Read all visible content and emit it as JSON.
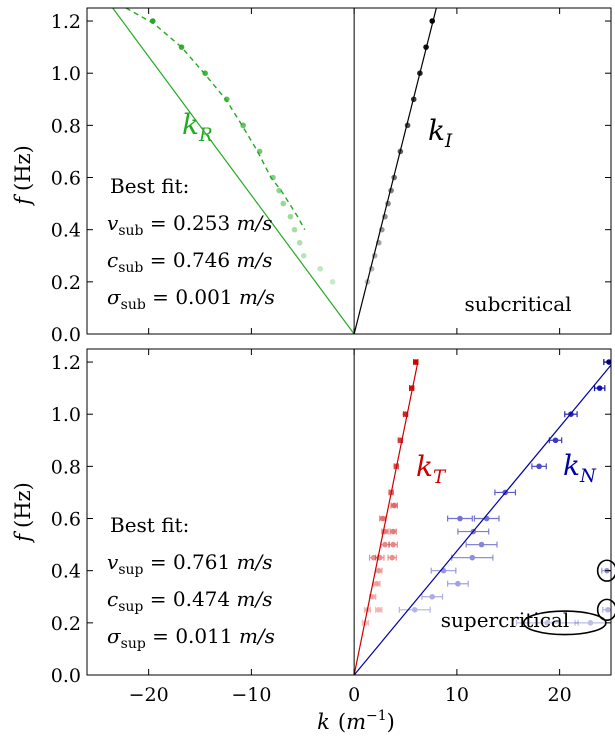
{
  "figure": {
    "xlabel_var": "k",
    "xlabel_unit_open": "(",
    "xlabel_unit_base": "m",
    "xlabel_unit_exp": "−1",
    "xlabel_unit_close": ")",
    "ylabel_var": "f",
    "ylabel_unit": "(Hz)"
  },
  "colors": {
    "green": "#22aa22",
    "black": "#000000",
    "red": "#cc0000",
    "blue": "#0000aa"
  },
  "chart_data": [
    {
      "type": "scatter",
      "panel": "top",
      "xlim": [
        -26,
        25
      ],
      "ylim": [
        0,
        1.25
      ],
      "xticks": [
        -20,
        -10,
        0,
        10,
        20
      ],
      "yticks": [
        "0.0",
        "0.2",
        "0.4",
        "0.6",
        "0.8",
        "1.0",
        "1.2"
      ],
      "xtick_labels_shown": false,
      "regime_label": "subcritical",
      "fit_heading": "Best fit:",
      "fit_lines": [
        {
          "sym": "v",
          "sub": "sub",
          "eq": " = ",
          "num": "0.253",
          "unit": "m/s"
        },
        {
          "sym": "c",
          "sub": "sub",
          "eq": " = ",
          "num": "0.746",
          "unit": "m/s"
        },
        {
          "sym": "σ",
          "sub": "sub",
          "eq": " = ",
          "num": "0.001",
          "unit": "m/s"
        }
      ],
      "series": [
        {
          "name": "k",
          "name_sub": "R",
          "color_key": "green",
          "fit_line": {
            "x0": 0,
            "y0": 0,
            "x1": -23.5,
            "y1": 1.25
          },
          "dashed_curve": [
            [
              -22.2,
              1.25
            ],
            [
              -19.5,
              1.19
            ],
            [
              -16.8,
              1.1
            ],
            [
              -14.6,
              1.0
            ],
            [
              -12.5,
              0.9
            ],
            [
              -10.9,
              0.8
            ],
            [
              -9.4,
              0.7
            ],
            [
              -8.1,
              0.6
            ],
            [
              -7.1,
              0.55
            ],
            [
              -6.3,
              0.5
            ],
            [
              -5.5,
              0.45
            ],
            [
              -4.8,
              0.4
            ]
          ],
          "points": [
            {
              "x": -19.6,
              "y": 1.2
            },
            {
              "x": -16.8,
              "y": 1.1
            },
            {
              "x": -14.5,
              "y": 1.0
            },
            {
              "x": -12.4,
              "y": 0.9
            },
            {
              "x": -10.8,
              "y": 0.8
            },
            {
              "x": -9.2,
              "y": 0.7
            },
            {
              "x": -7.9,
              "y": 0.6
            },
            {
              "x": -7.3,
              "y": 0.55
            },
            {
              "x": -6.9,
              "y": 0.5
            },
            {
              "x": -6.2,
              "y": 0.45
            },
            {
              "x": -5.8,
              "y": 0.4
            },
            {
              "x": -5.3,
              "y": 0.35
            },
            {
              "x": -4.9,
              "y": 0.3
            },
            {
              "x": -3.3,
              "y": 0.25
            },
            {
              "x": -2.1,
              "y": 0.2
            }
          ]
        },
        {
          "name": "k",
          "name_sub": "I",
          "color_key": "black",
          "fit_line": {
            "x0": 0,
            "y0": 0,
            "x1": 8.0,
            "y1": 1.25
          },
          "points": [
            {
              "x": 7.6,
              "y": 1.2
            },
            {
              "x": 7.0,
              "y": 1.1
            },
            {
              "x": 6.4,
              "y": 1.0
            },
            {
              "x": 5.8,
              "y": 0.9
            },
            {
              "x": 5.2,
              "y": 0.8
            },
            {
              "x": 4.5,
              "y": 0.7
            },
            {
              "x": 3.9,
              "y": 0.6
            },
            {
              "x": 3.6,
              "y": 0.55
            },
            {
              "x": 3.3,
              "y": 0.5
            },
            {
              "x": 3.0,
              "y": 0.45
            },
            {
              "x": 2.7,
              "y": 0.4
            },
            {
              "x": 2.4,
              "y": 0.35
            },
            {
              "x": 2.0,
              "y": 0.3
            },
            {
              "x": 1.7,
              "y": 0.25
            },
            {
              "x": 1.3,
              "y": 0.2
            }
          ]
        }
      ]
    },
    {
      "type": "scatter",
      "panel": "bottom",
      "xlim": [
        -26,
        25
      ],
      "ylim": [
        0,
        1.25
      ],
      "xticks": [
        -20,
        -10,
        0,
        10,
        20
      ],
      "xtick_labels": [
        "−20",
        "−10",
        "0",
        "10",
        "20"
      ],
      "yticks": [
        "0.0",
        "0.2",
        "0.4",
        "0.6",
        "0.8",
        "1.0",
        "1.2"
      ],
      "regime_label": "supercritical",
      "fit_heading": "Best fit:",
      "fit_lines": [
        {
          "sym": "v",
          "sub": "sup",
          "eq": " = ",
          "num": "0.761",
          "unit": "m/s"
        },
        {
          "sym": "c",
          "sub": "sup",
          "eq": " = ",
          "num": "0.474",
          "unit": "m/s"
        },
        {
          "sym": "σ",
          "sub": "sup",
          "eq": " = ",
          "num": "0.011",
          "unit": "m/s"
        }
      ],
      "highlight_ellipses": [
        {
          "cx": 24.6,
          "cy": 0.4,
          "rx": 0.9,
          "ry": 0.04
        },
        {
          "cx": 24.6,
          "cy": 0.25,
          "rx": 0.9,
          "ry": 0.04
        },
        {
          "cx": 20.5,
          "cy": 0.2,
          "rx": 4.0,
          "ry": 0.045
        }
      ],
      "series": [
        {
          "name": "k",
          "name_sub": "T",
          "color_key": "red",
          "fit_line": {
            "x0": 0,
            "y0": 0,
            "x1": 6.2,
            "y1": 1.2
          },
          "points": [
            {
              "x": 6.0,
              "y": 1.2,
              "xerr": 0.2
            },
            {
              "x": 5.6,
              "y": 1.1,
              "xerr": 0.2
            },
            {
              "x": 5.0,
              "y": 1.0,
              "xerr": 0.2
            },
            {
              "x": 4.5,
              "y": 0.9,
              "xerr": 0.2
            },
            {
              "x": 4.1,
              "y": 0.8,
              "xerr": 0.2
            },
            {
              "x": 3.6,
              "y": 0.7,
              "xerr": 0.2
            },
            {
              "x": 3.9,
              "y": 0.65,
              "xerr": 0.3
            },
            {
              "x": 2.8,
              "y": 0.6,
              "xerr": 0.3
            },
            {
              "x": 3.0,
              "y": 0.55,
              "xerr": 0.3
            },
            {
              "x": 3.8,
              "y": 0.55,
              "xerr": 0.3
            },
            {
              "x": 3.0,
              "y": 0.5,
              "xerr": 0.4
            },
            {
              "x": 3.8,
              "y": 0.5,
              "xerr": 0.4
            },
            {
              "x": 1.9,
              "y": 0.45,
              "xerr": 0.4
            },
            {
              "x": 2.5,
              "y": 0.45,
              "xerr": 0.4
            },
            {
              "x": 3.7,
              "y": 0.45,
              "xerr": 0.4
            },
            {
              "x": 2.4,
              "y": 0.4,
              "xerr": 0.3
            },
            {
              "x": 2.2,
              "y": 0.35,
              "xerr": 0.3
            },
            {
              "x": 1.8,
              "y": 0.3,
              "xerr": 0.3
            },
            {
              "x": 1.3,
              "y": 0.25,
              "xerr": 0.3
            },
            {
              "x": 2.4,
              "y": 0.25,
              "xerr": 0.3
            },
            {
              "x": 1.1,
              "y": 0.2,
              "xerr": 0.3
            }
          ]
        },
        {
          "name": "k",
          "name_sub": "N",
          "color_key": "blue",
          "fit_line": {
            "x0": 0,
            "y0": 0,
            "x1": 26.3,
            "y1": 1.25
          },
          "points": [
            {
              "x": 24.8,
              "y": 1.2,
              "xerr": 0.5
            },
            {
              "x": 23.9,
              "y": 1.1,
              "xerr": 0.5
            },
            {
              "x": 21.1,
              "y": 1.0,
              "xerr": 0.6
            },
            {
              "x": 19.6,
              "y": 0.9,
              "xerr": 0.6
            },
            {
              "x": 18.0,
              "y": 0.8,
              "xerr": 0.7
            },
            {
              "x": 14.7,
              "y": 0.7,
              "xerr": 1.0
            },
            {
              "x": 10.3,
              "y": 0.6,
              "xerr": 1.2
            },
            {
              "x": 12.9,
              "y": 0.6,
              "xerr": 1.2
            },
            {
              "x": 11.6,
              "y": 0.55,
              "xerr": 1.5
            },
            {
              "x": 12.4,
              "y": 0.5,
              "xerr": 1.5
            },
            {
              "x": 11.5,
              "y": 0.45,
              "xerr": 2.0
            },
            {
              "x": 24.6,
              "y": 0.4,
              "xerr": 0.5
            },
            {
              "x": 8.7,
              "y": 0.4,
              "xerr": 1.2
            },
            {
              "x": 10.1,
              "y": 0.35,
              "xerr": 1.0
            },
            {
              "x": 7.6,
              "y": 0.3,
              "xerr": 1.0
            },
            {
              "x": 24.7,
              "y": 0.25,
              "xerr": 0.5
            },
            {
              "x": 5.9,
              "y": 0.25,
              "xerr": 1.5
            },
            {
              "x": 18.8,
              "y": 0.2,
              "xerr": 3.0
            },
            {
              "x": 23.0,
              "y": 0.2,
              "xerr": 1.5
            }
          ]
        }
      ]
    }
  ]
}
